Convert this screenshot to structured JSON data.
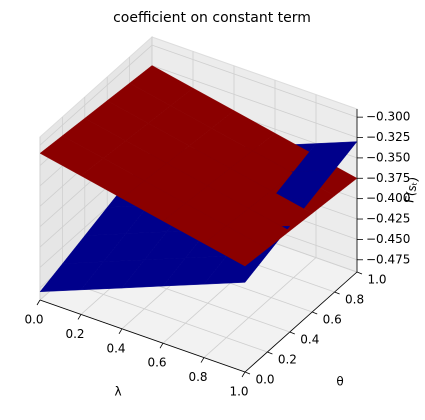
{
  "chart_data": {
    "type": "surface",
    "title": "coefficient on constant term",
    "xlabel": "λ",
    "ylabel": "θ",
    "zlabel": "F(sₜ)",
    "x": [
      0,
      0.2,
      0.4,
      0.6,
      0.8,
      1
    ],
    "y": [
      0,
      0.2,
      0.4,
      0.6,
      0.8,
      1
    ],
    "series": [
      {
        "color": "#00008b",
        "z": [
          [
            -0.48,
            -0.46,
            -0.44,
            -0.42,
            -0.4,
            -0.38
          ],
          [
            -0.47,
            -0.45,
            -0.43,
            -0.41,
            -0.39,
            -0.37
          ],
          [
            -0.46,
            -0.44,
            -0.42,
            -0.4,
            -0.38,
            -0.36
          ],
          [
            -0.45,
            -0.43,
            -0.41,
            -0.39,
            -0.37,
            -0.35
          ],
          [
            -0.44,
            -0.42,
            -0.4,
            -0.38,
            -0.36,
            -0.34
          ],
          [
            -0.43,
            -0.41,
            -0.39,
            -0.37,
            -0.35,
            -0.33
          ]
        ]
      },
      {
        "color": "#8b0000",
        "z": [
          [
            -0.31,
            -0.32,
            -0.33,
            -0.34,
            -0.35,
            -0.36
          ],
          [
            -0.313,
            -0.323,
            -0.333,
            -0.343,
            -0.353,
            -0.363
          ],
          [
            -0.316,
            -0.326,
            -0.336,
            -0.346,
            -0.356,
            -0.366
          ],
          [
            -0.319,
            -0.329,
            -0.339,
            -0.349,
            -0.359,
            -0.369
          ],
          [
            -0.322,
            -0.332,
            -0.342,
            -0.352,
            -0.362,
            -0.372
          ],
          [
            -0.325,
            -0.335,
            -0.345,
            -0.355,
            -0.365,
            -0.375
          ]
        ]
      }
    ],
    "xlim": [
      0,
      1
    ],
    "ylim": [
      0,
      1
    ],
    "zlim": [
      -0.49,
      -0.29
    ],
    "xticks": [
      {
        "value": 0,
        "label": "0.0"
      },
      {
        "value": 0.2,
        "label": "0.2"
      },
      {
        "value": 0.4,
        "label": "0.4"
      },
      {
        "value": 0.6,
        "label": "0.6"
      },
      {
        "value": 0.8,
        "label": "0.8"
      },
      {
        "value": 1,
        "label": "1.0"
      }
    ],
    "yticks": [
      {
        "value": 0,
        "label": "0.0"
      },
      {
        "value": 0.2,
        "label": "0.2"
      },
      {
        "value": 0.4,
        "label": "0.4"
      },
      {
        "value": 0.6,
        "label": "0.6"
      },
      {
        "value": 0.8,
        "label": "0.8"
      },
      {
        "value": 1,
        "label": "1.0"
      }
    ],
    "zticks": [
      {
        "value": -0.3,
        "label": "−0.300"
      },
      {
        "value": -0.325,
        "label": "−0.325"
      },
      {
        "value": -0.35,
        "label": "−0.350"
      },
      {
        "value": -0.375,
        "label": "−0.375"
      },
      {
        "value": -0.4,
        "label": "−0.400"
      },
      {
        "value": -0.425,
        "label": "−0.425"
      },
      {
        "value": -0.45,
        "label": "−0.450"
      },
      {
        "value": -0.475,
        "label": "−0.475"
      }
    ],
    "grid": true
  }
}
